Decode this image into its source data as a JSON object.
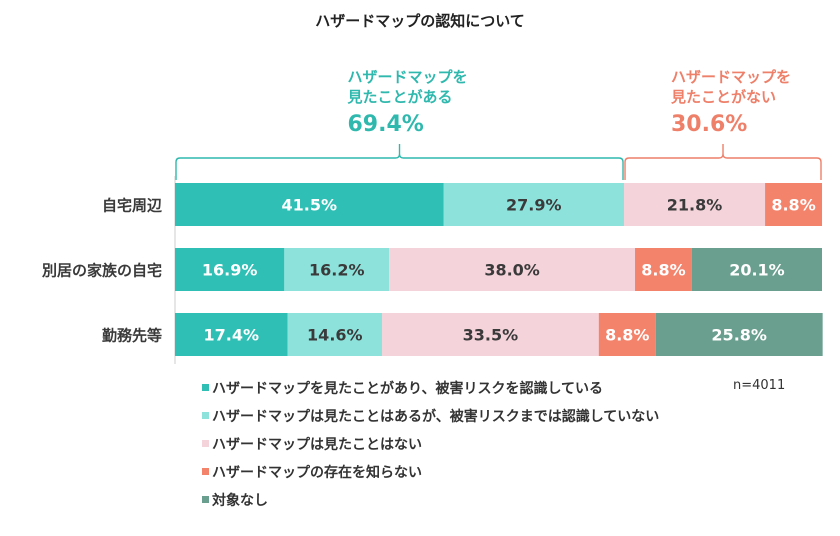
{
  "chart_data": {
    "type": "bar",
    "orientation": "horizontal",
    "stacked": true,
    "title": "ハザードマップの認知について",
    "categories": [
      "自宅周辺",
      "別居の家族の自宅",
      "勤務先等"
    ],
    "series": [
      {
        "name": "ハザードマップを見たことがあり、被害リスクを認識している",
        "color": "#30bfb5",
        "label_color": "#ffffff",
        "values": [
          41.5,
          16.9,
          17.4
        ]
      },
      {
        "name": "ハザードマップは見たことはあるが、被害リスクまでは認識していない",
        "color": "#8ee2dc",
        "label_color": "#3a3a3a",
        "values": [
          27.9,
          16.2,
          14.6
        ]
      },
      {
        "name": "ハザードマップは見たことはない",
        "color": "#f4d3da",
        "label_color": "#3a3a3a",
        "values": [
          21.8,
          38.0,
          33.5
        ]
      },
      {
        "name": "ハザードマップの存在を知らない",
        "color": "#f4836c",
        "label_color": "#ffffff",
        "values": [
          8.8,
          8.8,
          8.8
        ]
      },
      {
        "name": "対象なし",
        "color": "#6a9e8e",
        "label_color": "#ffffff",
        "values": [
          0,
          20.1,
          25.8
        ]
      }
    ],
    "value_labels": [
      [
        "41.5%",
        "27.9%",
        "21.8%",
        "8.8%",
        ""
      ],
      [
        "16.9%",
        "16.2%",
        "38.0%",
        "8.8%",
        "20.1%"
      ],
      [
        "17.4%",
        "14.6%",
        "33.5%",
        "8.8%",
        "25.8%"
      ]
    ],
    "xlim": [
      0,
      100
    ],
    "xlabel": "",
    "ylabel": "",
    "grid": false,
    "legend_position": "bottom-left",
    "annotations": [
      {
        "lines": [
          "ハザードマップを",
          "見たことがある"
        ],
        "value": "69.4%",
        "range": [
          0,
          69.4
        ],
        "color": "#2fb8ad",
        "applies_to": "自宅周辺"
      },
      {
        "lines": [
          "ハザードマップを",
          "見たことがない"
        ],
        "value": "30.6%",
        "range": [
          69.4,
          100
        ],
        "color": "#ee7f69",
        "applies_to": "自宅周辺"
      }
    ],
    "note": "n=4011"
  }
}
